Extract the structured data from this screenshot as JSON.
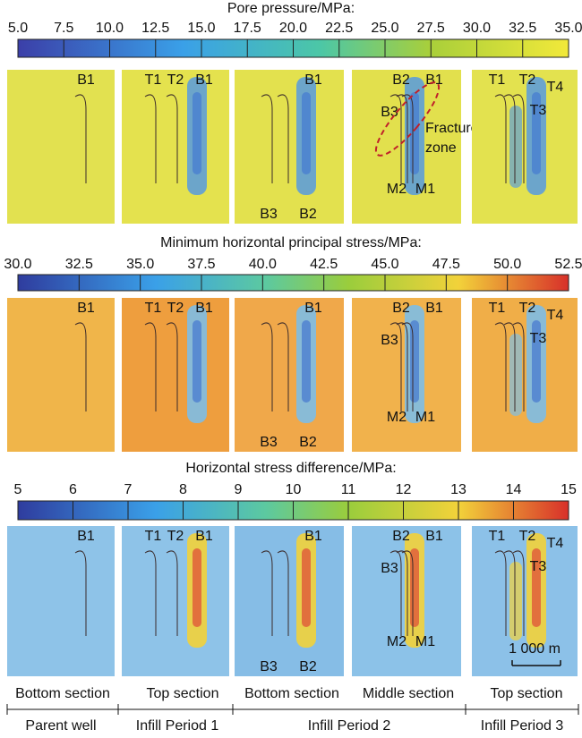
{
  "rows": [
    {
      "title": "Pore pressure/MPa:",
      "ticks": [
        "5.0",
        "7.5",
        "10.0",
        "12.5",
        "15.0",
        "17.5",
        "20.0",
        "22.5",
        "25.0",
        "27.5",
        "30.0",
        "32.5",
        "35.0"
      ],
      "panels": [
        {
          "labels": [
            "B1"
          ]
        },
        {
          "labels": [
            "T1",
            "T2",
            "B1"
          ]
        },
        {
          "labels": [
            "B1",
            "B3",
            "B2"
          ]
        },
        {
          "labels": [
            "B2",
            "B1",
            "B3",
            "M2",
            "M1"
          ],
          "annotation": [
            "Fracture",
            "zone"
          ]
        },
        {
          "labels": [
            "T1",
            "T2",
            "T4",
            "T3"
          ]
        }
      ]
    },
    {
      "title": "Minimum horizontal principal stress/MPa:",
      "ticks": [
        "30.0",
        "32.5",
        "35.0",
        "37.5",
        "40.0",
        "42.5",
        "45.0",
        "47.5",
        "50.0",
        "52.5"
      ],
      "panels": [
        {
          "labels": [
            "B1"
          ]
        },
        {
          "labels": [
            "T1",
            "T2",
            "B1"
          ]
        },
        {
          "labels": [
            "B1",
            "B3",
            "B2"
          ]
        },
        {
          "labels": [
            "B2",
            "B1",
            "B3",
            "M2",
            "M1"
          ]
        },
        {
          "labels": [
            "T1",
            "T2",
            "T4",
            "T3"
          ]
        }
      ]
    },
    {
      "title": "Horizontal stress difference/MPa:",
      "ticks": [
        "5",
        "6",
        "7",
        "8",
        "9",
        "10",
        "11",
        "12",
        "13",
        "14",
        "15"
      ],
      "panels": [
        {
          "labels": [
            "B1"
          ]
        },
        {
          "labels": [
            "T1",
            "T2",
            "B1"
          ]
        },
        {
          "labels": [
            "B1",
            "B3",
            "B2"
          ]
        },
        {
          "labels": [
            "B2",
            "B1",
            "B3",
            "M2",
            "M1"
          ]
        },
        {
          "labels": [
            "T1",
            "T2",
            "T4",
            "T3"
          ]
        }
      ]
    }
  ],
  "scale_bar": "1 000 m",
  "sections": [
    "Bottom section",
    "Top section",
    "Bottom section",
    "Middle section",
    "Top section"
  ],
  "periods": [
    "Parent well",
    "Infill Period 1",
    "Infill Period 2",
    "Infill Period 3"
  ]
}
